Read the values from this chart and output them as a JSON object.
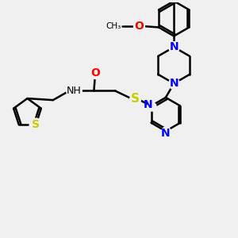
{
  "bg_color": "#f0f0f0",
  "bond_color": "#000000",
  "N_color": "#0000ff",
  "O_color": "#ff0000",
  "S_color": "#cccc00",
  "line_width": 1.8,
  "font_size": 9,
  "fig_size": [
    3.0,
    3.0
  ],
  "dpi": 100,
  "xlim": [
    0,
    10
  ],
  "ylim": [
    0,
    10
  ]
}
